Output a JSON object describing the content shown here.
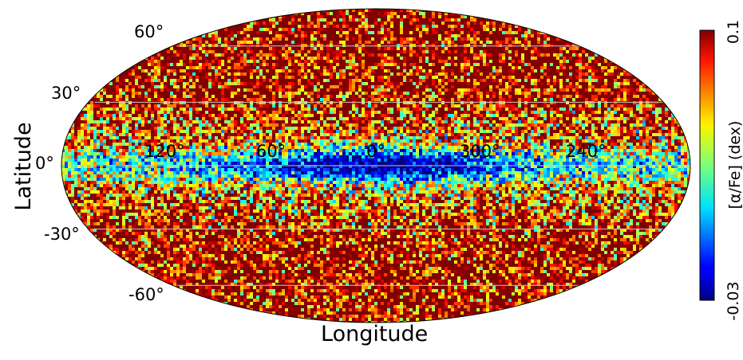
{
  "chart_data": {
    "type": "heatmap",
    "projection": "mollweide",
    "title": "",
    "xlabel": "Longitude",
    "ylabel": "Latitude",
    "lat_ticks": [
      {
        "value": 60,
        "label": "60°"
      },
      {
        "value": 30,
        "label": "30°"
      },
      {
        "value": 0,
        "label": "0°"
      },
      {
        "value": -30,
        "label": "-30°"
      },
      {
        "value": -60,
        "label": "-60°"
      }
    ],
    "lon_ticks": [
      {
        "value": 120,
        "label": "120°"
      },
      {
        "value": 60,
        "label": "60°"
      },
      {
        "value": 0,
        "label": "0°"
      },
      {
        "value": 300,
        "label": "300°"
      },
      {
        "value": 240,
        "label": "240°"
      }
    ],
    "colorbar": {
      "label": "[α/Fe] (dex)",
      "min": -0.03,
      "max": 0.1,
      "min_label": "-0.03",
      "max_label": "0.1",
      "colormap": "jet"
    },
    "field_description_values": {
      "disk_center_value": -0.03,
      "high_latitude_value": 0.1
    },
    "grid": true
  },
  "colors": {
    "grid_line": "#c8c8c8",
    "outline": "#000000",
    "background": "#ffffff"
  }
}
